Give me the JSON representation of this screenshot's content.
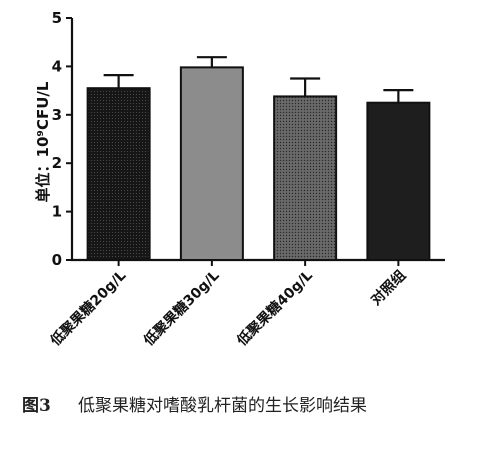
{
  "chart_data": {
    "type": "bar",
    "categories": [
      "低聚果糖20g/L",
      "低聚果糖30g/L",
      "低聚果糖40g/L",
      "对照组"
    ],
    "values": [
      3.55,
      3.98,
      3.38,
      3.25
    ],
    "errors": [
      0.27,
      0.21,
      0.37,
      0.26
    ],
    "ylabel": "单位：10⁹CFU/L",
    "ylim": [
      0,
      5
    ],
    "yticks": [
      0,
      1,
      2,
      3,
      4,
      5
    ],
    "bar_colors": [
      "#1a1a1a",
      "#8c8c8c",
      "#5a5a5a",
      "#1e1e1e"
    ],
    "bar_patterns": [
      "dots-dense-dark",
      "solid",
      "dots-grey",
      "solid"
    ],
    "grid": false,
    "legend": "none"
  },
  "caption": {
    "label": "图3",
    "text": "低聚果糖对嗜酸乳杆菌的生长影响结果"
  }
}
